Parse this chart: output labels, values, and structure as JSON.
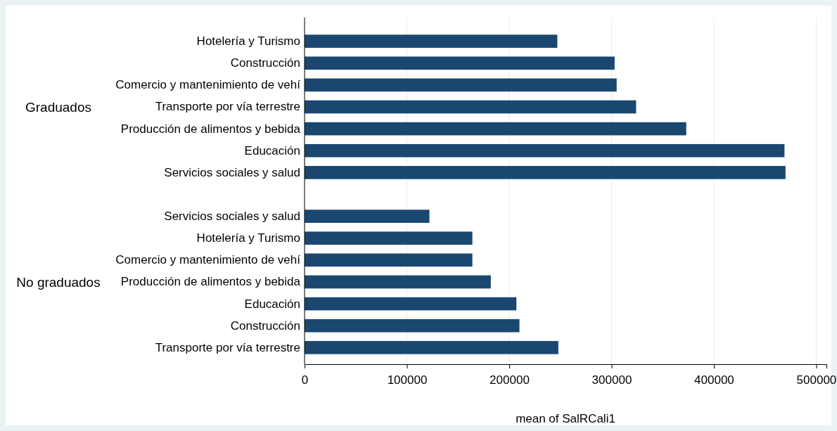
{
  "chart_data": {
    "type": "bar",
    "orientation": "horizontal",
    "xlabel": "mean of SalRCali1",
    "categories": [
      "Hotelería y Turismo",
      "Construcción",
      "Comercio y mantenimiento de vehí",
      "Transporte por vía terrestre",
      "Producción de alimentos y bebida",
      "Educación",
      "Servicios sociales y salud",
      null,
      "Servicios sociales y salud",
      "Hotelería y Turismo",
      "Comercio y mantenimiento de vehí",
      "Producción de alimentos y bebida",
      "Educación",
      "Construcción",
      "Transporte por vía terrestre"
    ],
    "values": [
      247000,
      303000,
      305000,
      324000,
      373000,
      469000,
      470000,
      null,
      122000,
      164000,
      164000,
      182000,
      207000,
      210000,
      248000
    ],
    "color": "#1a476f",
    "annotations": [
      "Graduados",
      "No graduados"
    ],
    "xlim": [
      0,
      510000
    ],
    "xticks": [
      0,
      100000,
      200000,
      300000,
      400000,
      500000
    ],
    "grid": "x"
  }
}
